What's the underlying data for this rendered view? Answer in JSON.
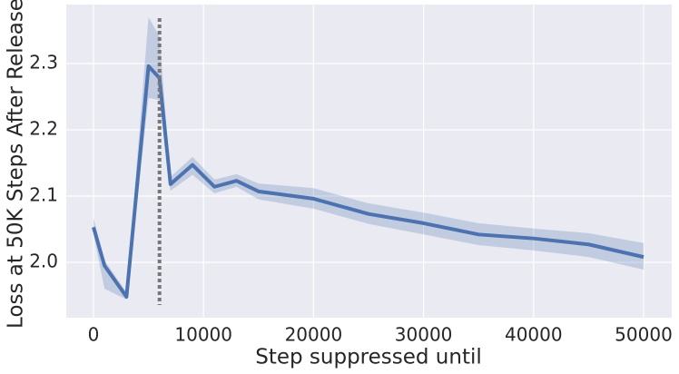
{
  "chart_data": {
    "type": "line",
    "xlabel": "Step suppressed until",
    "ylabel": "Loss at 50K Steps After Release",
    "x": [
      0,
      1000,
      3000,
      5000,
      6000,
      7000,
      9000,
      11000,
      13000,
      15000,
      20000,
      25000,
      30000,
      35000,
      40000,
      45000,
      50000
    ],
    "series": [
      {
        "color": "#4c72b0",
        "values": [
          2.053,
          1.995,
          1.948,
          2.296,
          2.278,
          2.118,
          2.147,
          2.114,
          2.123,
          2.107,
          2.096,
          2.073,
          2.059,
          2.042,
          2.036,
          2.027,
          2.008
        ],
        "lower": [
          2.042,
          1.96,
          1.944,
          2.248,
          2.245,
          2.108,
          2.132,
          2.104,
          2.114,
          2.095,
          2.081,
          2.058,
          2.042,
          2.026,
          2.018,
          2.008,
          1.989
        ],
        "upper": [
          2.067,
          2.003,
          1.955,
          2.37,
          2.341,
          2.129,
          2.159,
          2.125,
          2.133,
          2.119,
          2.112,
          2.089,
          2.075,
          2.059,
          2.051,
          2.044,
          2.029
        ]
      }
    ],
    "vline_x": 6000,
    "xlim": [
      -2475,
      52558
    ],
    "ylim": [
      1.9164,
      2.389
    ],
    "xticks": [
      0,
      10000,
      20000,
      30000,
      40000,
      50000
    ],
    "yticks": [
      {
        "value": 2,
        "label": "2.0"
      },
      2.1,
      2.2,
      2.3
    ],
    "grid": true
  }
}
